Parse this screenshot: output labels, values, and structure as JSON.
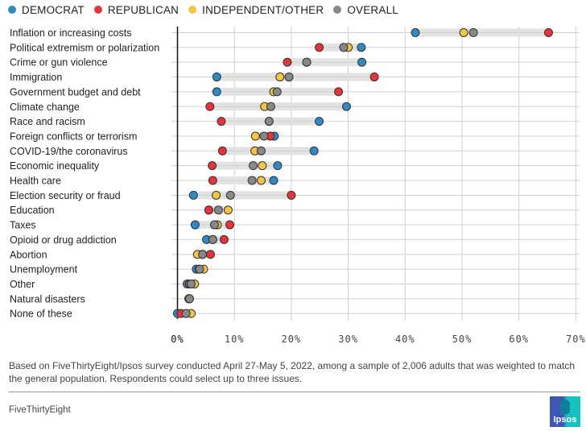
{
  "legend": [
    {
      "label": "DEMOCRAT",
      "color": "#2e8ac6"
    },
    {
      "label": "REPUBLICAN",
      "color": "#e8333a"
    },
    {
      "label": "INDEPENDENT/OTHER",
      "color": "#f5c542"
    },
    {
      "label": "OVERALL",
      "color": "#888888"
    }
  ],
  "chart_data": {
    "type": "scatter",
    "subtype": "dot-range",
    "title": "",
    "xlabel": "",
    "ylabel": "",
    "xlim": [
      0,
      70
    ],
    "x_ticks": [
      "0%",
      "10%",
      "20%",
      "30%",
      "40%",
      "50%",
      "60%",
      "70%"
    ],
    "x_tick_values": [
      0,
      10,
      20,
      30,
      40,
      50,
      60,
      70
    ],
    "grid": true,
    "legend_position": "top-left",
    "series_order": [
      "Democrat",
      "Republican",
      "Independent/Other",
      "Overall"
    ],
    "categories": [
      "Inflation or increasing costs",
      "Political extremism or polarization",
      "Crime or gun violence",
      "Immigration",
      "Government budget and debt",
      "Climate change",
      "Race and racism",
      "Foreign conflicts or terrorism",
      "COVID-19/the coronavirus",
      "Economic inequality",
      "Health care",
      "Election security or fraud",
      "Education",
      "Taxes",
      "Opioid or drug addiction",
      "Abortion",
      "Unemployment",
      "Other",
      "Natural disasters",
      "None of these"
    ],
    "series": [
      {
        "name": "Democrat",
        "color": "#2e8ac6",
        "values": [
          41.8,
          32.3,
          32.4,
          6.9,
          6.9,
          29.7,
          24.9,
          17.0,
          24.0,
          17.6,
          16.9,
          2.8,
          5.5,
          3.1,
          5.1,
          4.4,
          3.3,
          1.7,
          2.0,
          0.0
        ]
      },
      {
        "name": "Republican",
        "color": "#e8333a",
        "values": [
          65.2,
          24.9,
          19.3,
          34.6,
          28.3,
          5.7,
          7.7,
          16.3,
          7.9,
          6.1,
          6.2,
          20.0,
          5.5,
          9.2,
          8.2,
          5.8,
          3.8,
          2.1,
          2.0,
          0.6
        ]
      },
      {
        "name": "Independent/Other",
        "color": "#f5c542",
        "values": [
          50.3,
          30.0,
          22.7,
          18.0,
          16.9,
          15.3,
          16.1,
          13.7,
          13.6,
          14.9,
          14.7,
          6.8,
          8.9,
          7.0,
          6.2,
          3.5,
          4.6,
          3.0,
          2.1,
          2.4
        ]
      },
      {
        "name": "Overall",
        "color": "#888888",
        "values": [
          52.0,
          29.2,
          22.7,
          19.6,
          17.5,
          16.4,
          16.1,
          15.2,
          14.7,
          13.3,
          13.1,
          9.3,
          7.2,
          6.5,
          6.2,
          4.4,
          3.9,
          2.4,
          2.1,
          1.5
        ]
      }
    ]
  },
  "footer": {
    "note": "Based on FiveThirtyEight/Ipsos survey conducted April 27-May 5, 2022, among a sample of 2,006 adults that was weighted to match the general population. Respondents could select up to three issues.",
    "source": "FiveThirtyEight",
    "logo_text": "Ipsos"
  }
}
